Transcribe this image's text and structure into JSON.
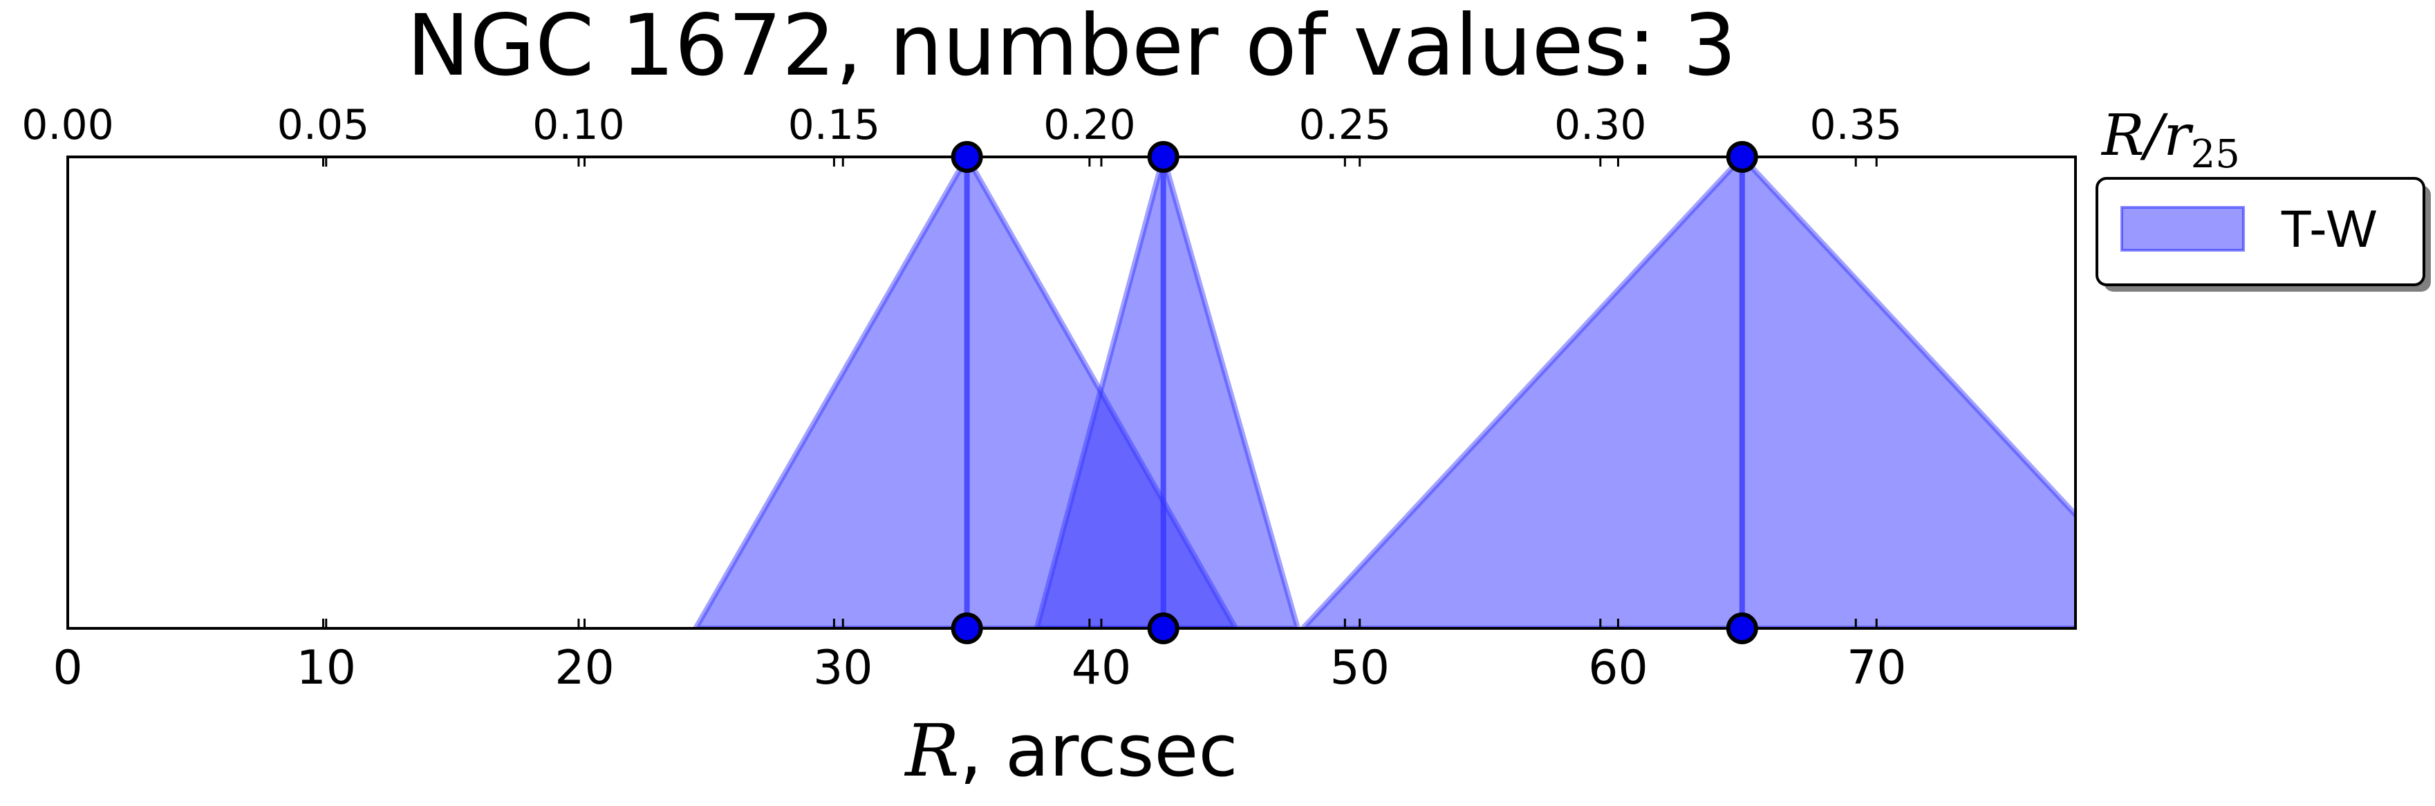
{
  "chart_data": {
    "type": "area",
    "title": "NGC 1672, number of values: 3",
    "xlabel_var": "R",
    "xlabel_rest": ", arcsec",
    "top_axis_label": "R/r",
    "top_axis_label_var": "R/r",
    "top_axis_label_sub": "25",
    "xlim": [
      0,
      77.7
    ],
    "ylim": [
      0,
      1
    ],
    "x_ticks": [
      0,
      10,
      20,
      30,
      40,
      50,
      60,
      70
    ],
    "x_tick_labels": [
      "0",
      "10",
      "20",
      "30",
      "40",
      "50",
      "60",
      "70"
    ],
    "top_ticks": [
      0.0,
      0.05,
      0.1,
      0.15,
      0.2,
      0.25,
      0.3,
      0.35
    ],
    "top_tick_labels": [
      "0.00",
      "0.05",
      "0.10",
      "0.15",
      "0.20",
      "0.25",
      "0.30",
      "0.35"
    ],
    "top_xlim": [
      0,
      0.393
    ],
    "grid": false,
    "legend_position": "right",
    "series": [
      {
        "name": "T-W",
        "color": "#3333ff",
        "alpha": 0.5,
        "peaks": [
          {
            "x": 34.8,
            "left": 24.3,
            "right": 45.2
          },
          {
            "x": 42.4,
            "left": 37.5,
            "right": 47.6
          },
          {
            "x": 64.8,
            "left": 47.8,
            "right": 81.8
          }
        ]
      }
    ]
  }
}
